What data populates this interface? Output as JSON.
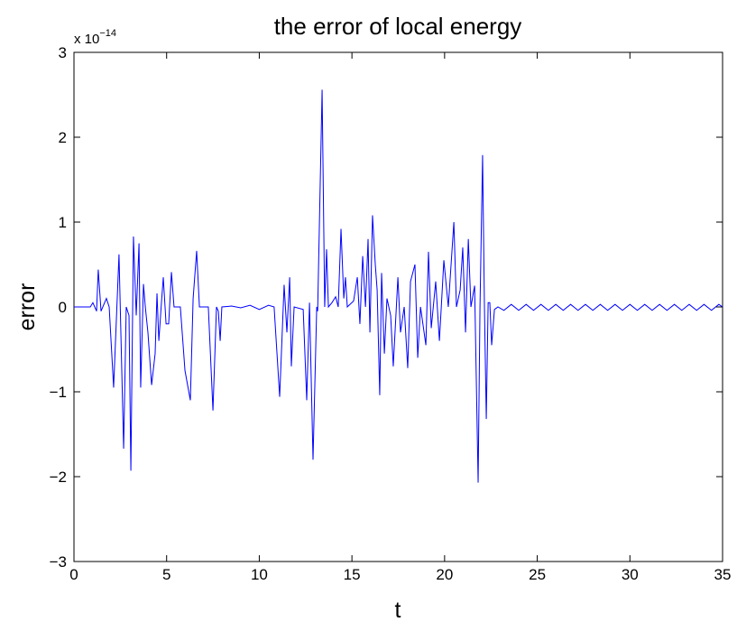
{
  "chart_data": {
    "type": "line",
    "title": "the error of local energy",
    "xlabel": "t",
    "ylabel": "error",
    "y_multiplier": {
      "base": "x 10",
      "exponent": "−14"
    },
    "xlim": [
      0,
      35
    ],
    "ylim": [
      -3,
      3
    ],
    "xticks": [
      0,
      5,
      10,
      15,
      20,
      25,
      30,
      35
    ],
    "yticks": [
      {
        "value": -3,
        "label": "−3"
      },
      {
        "value": -2,
        "label": "−2"
      },
      {
        "value": -1,
        "label": "−1"
      },
      0,
      1,
      2,
      3
    ],
    "grid": false,
    "series": [
      {
        "color": "#0000ff",
        "x": [
          0,
          0.88,
          1.02,
          1.22,
          1.31,
          1.46,
          1.75,
          1.9,
          2.14,
          2.43,
          2.68,
          2.82,
          2.97,
          3.07,
          3.21,
          3.36,
          3.51,
          3.6,
          3.75,
          3.85,
          3.99,
          4.19,
          4.38,
          4.48,
          4.58,
          4.72,
          4.82,
          4.97,
          5.11,
          5.26,
          5.4,
          5.74,
          5.99,
          6.28,
          6.43,
          6.62,
          6.77,
          7.25,
          7.5,
          7.69,
          7.79,
          7.89,
          7.98,
          8.5,
          9,
          9.5,
          10,
          10.5,
          10.8,
          11.1,
          11.34,
          11.49,
          11.64,
          11.73,
          11.88,
          12.37,
          12.56,
          12.71,
          12.9,
          13.1,
          13.15,
          13.39,
          13.53,
          13.63,
          13.73,
          13.92,
          14.12,
          14.26,
          14.41,
          14.56,
          14.65,
          14.75,
          15.09,
          15.29,
          15.43,
          15.58,
          15.73,
          15.87,
          15.97,
          16.11,
          16.26,
          16.36,
          16.5,
          16.6,
          16.75,
          16.89,
          17.09,
          17.23,
          17.48,
          17.62,
          17.82,
          18.01,
          18.16,
          18.4,
          18.55,
          18.7,
          18.99,
          19.13,
          19.28,
          19.52,
          19.72,
          19.96,
          20.2,
          20.5,
          20.64,
          20.84,
          20.98,
          21.13,
          21.28,
          21.42,
          21.62,
          21.81,
          21.91,
          22.05,
          22.15,
          22.25,
          22.35,
          22.44,
          22.54,
          22.69,
          22.88,
          23.2,
          23.6,
          24,
          24.4,
          24.8,
          25.2,
          25.6,
          26,
          26.4,
          26.8,
          27.2,
          27.6,
          28,
          28.4,
          28.8,
          29.2,
          29.6,
          30,
          30.4,
          30.8,
          31.2,
          31.6,
          32,
          32.4,
          32.8,
          33.2,
          33.6,
          34,
          34.4,
          34.8,
          35
        ],
        "values": [
          0,
          0,
          0.05,
          -0.05,
          0.44,
          -0.05,
          0.1,
          0,
          -0.95,
          0.62,
          -1.67,
          0,
          -0.1,
          -1.93,
          0.83,
          -0.1,
          0.75,
          -0.95,
          0.27,
          0,
          -0.3,
          -0.92,
          -0.55,
          0.16,
          -0.4,
          0.05,
          0.35,
          -0.2,
          -0.2,
          0.41,
          0,
          0,
          -0.75,
          -1.1,
          0.1,
          0.66,
          0,
          0,
          -1.22,
          0,
          -0.05,
          -0.4,
          0,
          0.01,
          -0.01,
          0.02,
          -0.03,
          0.02,
          0,
          -1.06,
          0.26,
          -0.3,
          0.35,
          -0.7,
          0,
          -0.03,
          -1.1,
          0.05,
          -1.8,
          0,
          -0.05,
          2.56,
          0,
          0.68,
          0,
          0.05,
          0.12,
          0,
          0.92,
          0.1,
          0.35,
          0,
          0.07,
          0.35,
          -0.2,
          0.6,
          0,
          0.8,
          -0.3,
          1.08,
          0.5,
          0.2,
          -1.04,
          0.4,
          -0.55,
          0.1,
          -0.1,
          -0.7,
          0.35,
          -0.3,
          0,
          -0.72,
          0.3,
          0.5,
          -0.6,
          0,
          -0.45,
          0.65,
          -0.25,
          0.3,
          -0.4,
          0.55,
          0,
          1.0,
          0,
          0.2,
          0.7,
          -0.3,
          0.8,
          0,
          0.25,
          -2.07,
          0,
          1.79,
          0,
          -1.32,
          0.05,
          0.05,
          -0.45,
          -0.03,
          0,
          -0.04,
          0.03,
          -0.04,
          0.03,
          -0.04,
          0.03,
          -0.04,
          0.03,
          -0.04,
          0.03,
          -0.04,
          0.03,
          -0.04,
          0.03,
          -0.04,
          0.03,
          -0.04,
          0.03,
          -0.04,
          0.03,
          -0.04,
          0.03,
          -0.04,
          0.03,
          -0.04,
          0.03,
          -0.04,
          0.03,
          -0.04,
          0.03,
          0
        ]
      }
    ]
  }
}
